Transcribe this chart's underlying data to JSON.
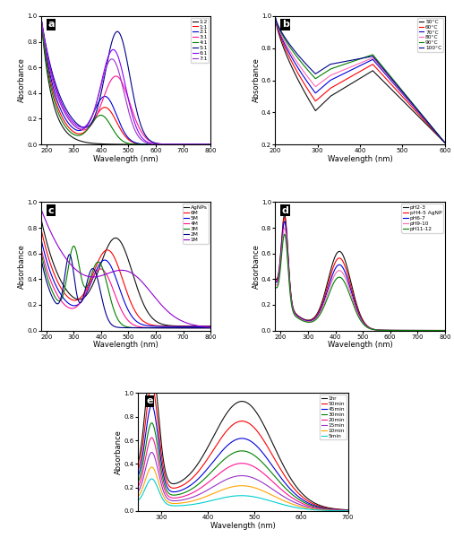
{
  "panel_a": {
    "title": "a",
    "xlabel": "Wavelength (nm)",
    "ylabel": "Absorbance",
    "xlim": [
      180,
      800
    ],
    "ylim": [
      0.0,
      1.0
    ],
    "xticks": [
      200,
      300,
      400,
      500,
      600,
      700,
      800
    ],
    "yticks": [
      0.0,
      0.2,
      0.4,
      0.6,
      0.8,
      1.0
    ]
  },
  "panel_b": {
    "title": "b",
    "xlabel": "Wavelength (nm)",
    "ylabel": "Absorbance",
    "xlim": [
      200,
      600
    ],
    "ylim": [
      0.2,
      1.0
    ],
    "xticks": [
      200,
      300,
      400,
      500,
      600
    ],
    "yticks": [
      0.2,
      0.4,
      0.6,
      0.8,
      1.0
    ]
  },
  "panel_c": {
    "title": "c",
    "xlabel": "Wavelength (nm)",
    "ylabel": "Absorbance",
    "xlim": [
      180,
      800
    ],
    "ylim": [
      0.0,
      1.0
    ],
    "xticks": [
      200,
      300,
      400,
      500,
      600,
      700,
      800
    ],
    "yticks": [
      0,
      0.2,
      0.4,
      0.6,
      0.8,
      1.0
    ]
  },
  "panel_d": {
    "title": "d",
    "xlabel": "Wavelength (nm)",
    "ylabel": "Absorbance",
    "xlim": [
      180,
      800
    ],
    "ylim": [
      0.0,
      1.0
    ],
    "xticks": [
      200,
      300,
      400,
      500,
      600,
      700,
      800
    ],
    "yticks": [
      0,
      0.2,
      0.4,
      0.6,
      0.8,
      1.0
    ]
  },
  "panel_e": {
    "title": "e",
    "xlabel": "Wavelength (nm)",
    "ylabel": "Absorbance",
    "xlim": [
      250,
      700
    ],
    "ylim": [
      0,
      1
    ],
    "xticks": [
      300,
      400,
      500,
      600,
      700
    ],
    "yticks": [
      0,
      0.2,
      0.4,
      0.6,
      0.8,
      1.0
    ]
  }
}
